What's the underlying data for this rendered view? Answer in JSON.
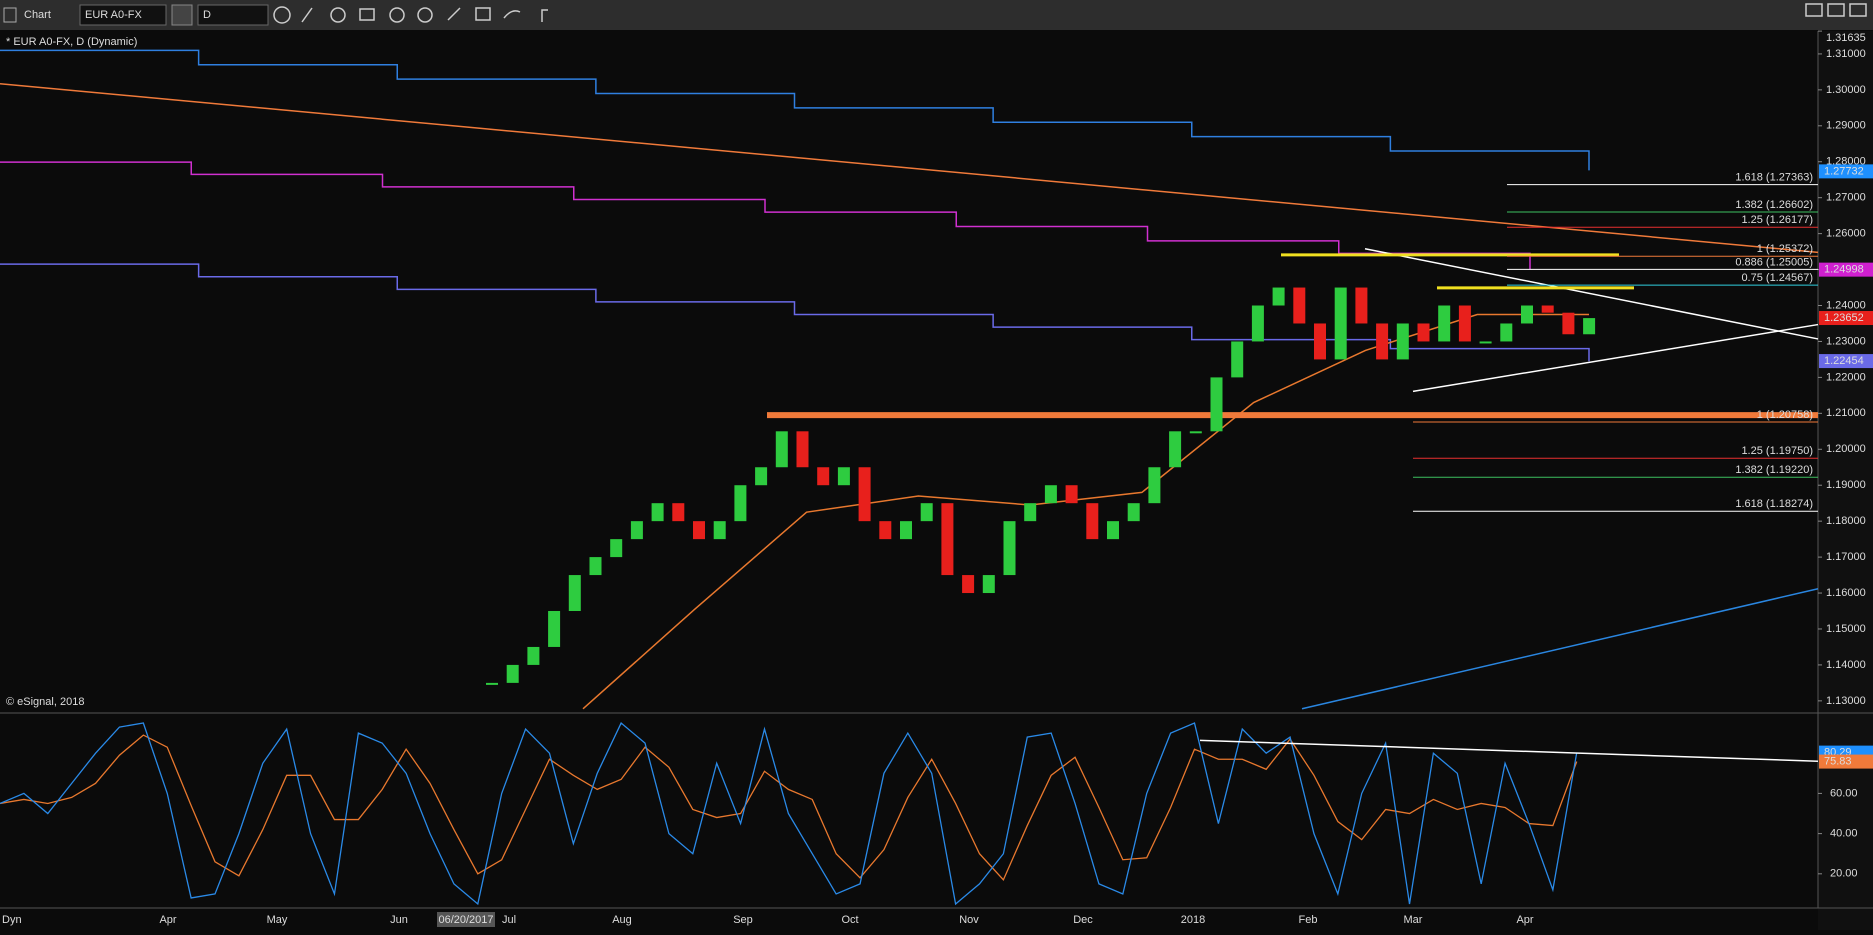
{
  "toolbar": {
    "title": "Chart",
    "symbol": "EUR A0-FX",
    "interval": "D"
  },
  "price_pane": {
    "label": "* EUR A0-FX, D (Dynamic)",
    "copyright": "© eSignal, 2018",
    "ylim": [
      1.1269,
      1.3161
    ],
    "yticks": [
      1.31635,
      {
        "value": 1.31,
        "label": "1.31000"
      },
      {
        "value": 1.3,
        "label": "1.30000"
      },
      {
        "value": 1.29,
        "label": "1.29000"
      },
      {
        "value": 1.28,
        "label": "1.28000"
      },
      {
        "value": 1.27,
        "label": "1.27000"
      },
      {
        "value": 1.26,
        "label": "1.26000"
      },
      {
        "value": 1.25,
        "label": "1.25000"
      },
      {
        "value": 1.24,
        "label": "1.24000"
      },
      {
        "value": 1.23,
        "label": "1.23000"
      },
      {
        "value": 1.22,
        "label": "1.22000"
      },
      {
        "value": 1.21,
        "label": "1.21000"
      },
      {
        "value": 1.2,
        "label": "1.20000"
      },
      {
        "value": 1.19,
        "label": "1.19000"
      },
      {
        "value": 1.18,
        "label": "1.18000"
      },
      {
        "value": 1.17,
        "label": "1.17000"
      },
      {
        "value": 1.16,
        "label": "1.16000"
      },
      {
        "value": 1.15,
        "label": "1.15000"
      },
      {
        "value": 1.14,
        "label": "1.14000"
      },
      {
        "value": 1.13,
        "label": "1.13000"
      }
    ],
    "closes": [
      1.135,
      1.14,
      1.145,
      1.155,
      1.165,
      1.17,
      1.175,
      1.18,
      1.185,
      1.18,
      1.175,
      1.18,
      1.19,
      1.195,
      1.205,
      1.195,
      1.19,
      1.195,
      1.18,
      1.175,
      1.18,
      1.185,
      1.165,
      1.16,
      1.165,
      1.18,
      1.185,
      1.19,
      1.185,
      1.175,
      1.18,
      1.185,
      1.195,
      1.205,
      1.205,
      1.22,
      1.23,
      1.24,
      1.245,
      1.235,
      1.225,
      1.245,
      1.235,
      1.225,
      1.235,
      1.23,
      1.24,
      1.23,
      1.23,
      1.235,
      1.24,
      1.238,
      1.232,
      1.2365
    ],
    "up_color": "#2ecc40",
    "down_color": "#e8201c",
    "overlays": [
      {
        "color": "#f07a3a",
        "values": [
          1.3017,
          1.2548
        ]
      },
      {
        "color": "#2f7fe0",
        "values": [
          1.311,
          1.307,
          1.303,
          1.299,
          1.295,
          1.291,
          1.287,
          1.283,
          1.2776
        ]
      },
      {
        "color": "#d030d0",
        "values": [
          1.2799,
          1.2765,
          1.273,
          1.2695,
          1.266,
          1.262,
          1.258,
          1.2545,
          1.25
        ]
      },
      {
        "color": "#6a6ae8",
        "values": [
          1.2515,
          1.248,
          1.2445,
          1.241,
          1.2375,
          1.234,
          1.2305,
          1.228,
          1.2245
        ]
      },
      {
        "color": "#e8782e",
        "values": [
          1.1278,
          1.1555,
          1.1825,
          1.187,
          1.1845,
          1.188,
          1.213,
          1.2275,
          1.2375,
          1.2375
        ]
      },
      {
        "color": "#2a86e0",
        "values": [
          1.1278,
          1.1612
        ]
      },
      {
        "color": "#ffffff",
        "values": [
          1.2558,
          1.2307
        ]
      },
      {
        "color": "#ffffff",
        "values": [
          1.2161,
          1.2347
        ]
      },
      {
        "color": "#f0e020",
        "values": [
          1.2541,
          1.2541
        ]
      },
      {
        "color": "#f0e020",
        "values": [
          1.2449,
          1.2449
        ]
      },
      {
        "color": "#f07a3a",
        "values": [
          1.2095,
          1.2095
        ]
      }
    ],
    "fibs": [
      {
        "label": "1.618 (1.27363)",
        "value": 1.27363,
        "color": "#ffffff"
      },
      {
        "label": "1.382 (1.26602)",
        "value": 1.26602,
        "color": "#3cc060"
      },
      {
        "label": "1.25 (1.26177)",
        "value": 1.26177,
        "color": "#e83030"
      },
      {
        "label": "1 (1.25372)",
        "value": 1.25372,
        "color": "#f07a3a"
      },
      {
        "label": "0.886 (1.25005)",
        "value": 1.25005,
        "color": "#ffffff"
      },
      {
        "label": "0.75 (1.24567)",
        "value": 1.24567,
        "color": "#30d0e0"
      },
      {
        "label": "1 (1.20758)",
        "value": 1.20758,
        "color": "#f07a3a"
      },
      {
        "label": "1.25 (1.19750)",
        "value": 1.1975,
        "color": "#e83030"
      },
      {
        "label": "1.382 (1.19220)",
        "value": 1.1922,
        "color": "#3cc060"
      },
      {
        "label": "1.618 (1.18274)",
        "value": 1.18274,
        "color": "#ffffff"
      }
    ],
    "markers": [
      {
        "value": 1.27732,
        "color": "#1e90ff"
      },
      {
        "value": 1.24998,
        "color": "#d020d0"
      },
      {
        "value": 1.23652,
        "color": "#e8201c"
      },
      {
        "value": 1.22454,
        "color": "#6a6ae8"
      }
    ]
  },
  "stoch_pane": {
    "ylim": [
      3,
      99
    ],
    "yticks": [
      {
        "value": 60,
        "label": "60.00"
      },
      {
        "value": 40,
        "label": "40.00"
      },
      {
        "value": 20,
        "label": "20.00"
      }
    ],
    "series": [
      {
        "color": "#2a8ae8",
        "values": [
          55,
          60,
          50,
          65,
          80,
          93,
          95,
          60,
          8,
          10,
          40,
          75,
          92,
          40,
          10,
          90,
          85,
          70,
          40,
          15,
          5,
          60,
          92,
          80,
          35,
          70,
          95,
          85,
          40,
          30,
          75,
          45,
          92,
          50,
          30,
          10,
          15,
          70,
          90,
          70,
          5,
          15,
          30,
          88,
          90,
          55,
          15,
          10,
          60,
          90,
          95,
          45,
          92,
          80,
          88,
          40,
          10,
          60,
          85,
          5,
          80,
          70,
          15,
          75,
          45,
          12,
          80.29
        ]
      },
      {
        "color": "#e8782e",
        "values": [
          55,
          57,
          55,
          58,
          65,
          79,
          89,
          83,
          54,
          26,
          19,
          42,
          69,
          69,
          47,
          47,
          62,
          82,
          65,
          42,
          20,
          27,
          52,
          77,
          69,
          62,
          67,
          83,
          73,
          52,
          48,
          50,
          71,
          62,
          57,
          30,
          18,
          32,
          58,
          77,
          55,
          30,
          17,
          44,
          69,
          78,
          53,
          27,
          28,
          53,
          82,
          77,
          77,
          72,
          87,
          69,
          46,
          37,
          52,
          50,
          57,
          52,
          55,
          53,
          45,
          44,
          75.83
        ]
      }
    ],
    "trendline": [
      86.4,
      76
    ],
    "markers": [
      {
        "value": 80.29,
        "color": "#1e90ff"
      },
      {
        "value": 75.83,
        "color": "#f07a3a"
      }
    ]
  },
  "x_axis": {
    "labels": [
      "Apr",
      "May",
      "Jun",
      "Jul",
      "Aug",
      "Sep",
      "Oct",
      "Nov",
      "Dec",
      "2018",
      "Feb",
      "Mar",
      "Apr"
    ],
    "cursor_date": "06/20/2017",
    "mode": "Dyn"
  }
}
